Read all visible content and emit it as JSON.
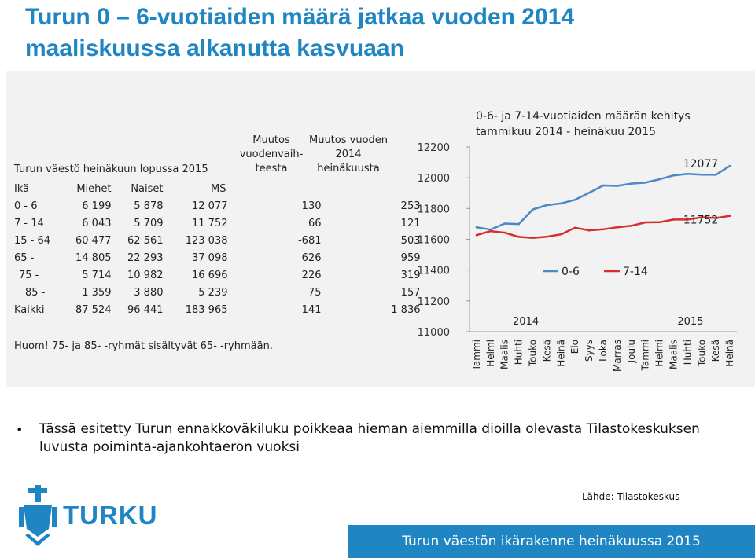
{
  "title": "Turun 0 – 6-vuotiaiden määrä jatkaa vuoden 2014 maaliskuussa alkanutta kasvuaan",
  "table": {
    "caption": "Turun väestö heinäkuun lopussa 2015",
    "headers": [
      "Ikä",
      "Miehet",
      "Naiset",
      "MS",
      "Muutos vuodenvaih-teesta",
      "Muutos vuoden 2014 heinäkuusta"
    ],
    "header_change1": "Muutos\nvuodenvaih-\nteesta",
    "header_change2": "Muutos vuoden\n2014\nheinäkuusta",
    "rows": [
      [
        "0 - 6",
        "6 199",
        "5 878",
        "12 077",
        "130",
        "253"
      ],
      [
        "7 - 14",
        "6 043",
        "5 709",
        "11 752",
        "66",
        "121"
      ],
      [
        "15 - 64",
        "60 477",
        "62 561",
        "123 038",
        "-681",
        "503"
      ],
      [
        "65 -",
        "14 805",
        "22 293",
        "37 098",
        "626",
        "959"
      ],
      [
        "75 -",
        "5 714",
        "10 982",
        "16 696",
        "226",
        "319"
      ],
      [
        "85 -",
        "1 359",
        "3 880",
        "5 239",
        "75",
        "157"
      ],
      [
        "Kaikki",
        "87 524",
        "96 441",
        "183 965",
        "141",
        "1 836"
      ]
    ],
    "note": "Huom! 75- ja 85- -ryhmät sisältyvät 65- -ryhmään."
  },
  "chart_data": {
    "type": "line",
    "title": "0-6- ja 7-14-vuotiaiden määrän kehitys\ntammikuu 2014 - heinäkuu 2015",
    "x": [
      "Tammi",
      "Helmi",
      "Maalis",
      "Huhti",
      "Touko",
      "Kesä",
      "Heinä",
      "Elo",
      "Syys",
      "Loka",
      "Marras",
      "Joulu",
      "Tammi",
      "Helmi",
      "Maalis",
      "Huhti",
      "Touko",
      "Kesä",
      "Heinä"
    ],
    "year_labels": [
      "2014",
      "2015"
    ],
    "ylim": [
      11000,
      12200
    ],
    "yticks": [
      "11000",
      "11200",
      "11400",
      "11600",
      "11800",
      "12000",
      "12200"
    ],
    "series": [
      {
        "name": "0-6",
        "color": "#4a88c8",
        "values": [
          11678,
          11663,
          11702,
          11699,
          11794,
          11822,
          11833,
          11857,
          11903,
          11950,
          11947,
          11962,
          11968,
          11990,
          12015,
          12025,
          12020,
          12019,
          12077
        ],
        "end_label": "12077"
      },
      {
        "name": "7-14",
        "color": "#d62e2e",
        "values": [
          11627,
          11653,
          11643,
          11616,
          11609,
          11617,
          11632,
          11675,
          11658,
          11665,
          11678,
          11688,
          11710,
          11711,
          11728,
          11728,
          11743,
          11738,
          11752
        ],
        "end_label": "11752"
      }
    ],
    "grid": false,
    "legend": "inside-center"
  },
  "bullet": "Tässä esitetty Turun ennakkoväkiluku poikkeaa hieman aiemmilla dioilla olevasta Tilastokeskuksen luvusta poiminta-ajankohtaeron vuoksi",
  "logo_text": "TURKU",
  "source": "Lähde: Tilastokeskus",
  "footer": "Turun väestön ikärakenne heinäkuussa 2015"
}
